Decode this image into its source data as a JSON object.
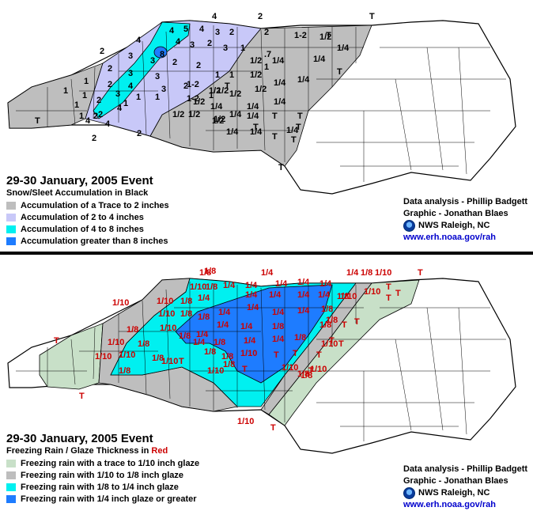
{
  "top": {
    "title": "29-30 January, 2005 Event",
    "subtitle": "Snow/Sleet Accumulation in Black",
    "legend": [
      {
        "label": "Accumulation of a Trace to 2 inches",
        "color": "#bebebe"
      },
      {
        "label": "Accumulation of 2 to 4 inches",
        "color": "#c8c8f8"
      },
      {
        "label": "Accumulation of 4 to 8 inches",
        "color": "#00f0f0"
      },
      {
        "label": "Accumulation greater than 8 inches",
        "color": "#1e7cff"
      }
    ],
    "credits": {
      "analysis": "Data analysis - Phillip Badgett",
      "graphic": "Graphic - Jonathan Blaes",
      "office": "NWS Raleigh, NC",
      "url": "www.erh.noaa.gov/rah"
    },
    "contour_labels": [
      "4",
      "2",
      "T",
      "4",
      "2",
      "2",
      "4",
      "T",
      "2",
      "2",
      "T"
    ],
    "county_values": [
      "4",
      "5",
      "4",
      "3",
      "2",
      "2",
      "1-2",
      "1/2",
      "1/4",
      "4",
      "8",
      "3",
      "2",
      "3",
      "1",
      "1/2",
      "1/4",
      "3",
      "3",
      "2",
      "2",
      ".7",
      "1",
      "1/2",
      "1/4",
      "2",
      "3",
      "3",
      "1",
      "1",
      "1/2",
      "1/4",
      "T",
      "1",
      "2",
      "4",
      "3",
      "2",
      "1",
      "1/2",
      "1/4",
      "1/4",
      "1",
      "1",
      "1/2",
      "3",
      "1-2",
      "1/2",
      "1/2",
      "1/4",
      "1/2",
      "T",
      "2",
      "4",
      "1",
      "1",
      "1/2",
      "1/4",
      "T",
      "T",
      "1",
      "2",
      "1",
      "1-2",
      "1/4",
      "T",
      "1/4",
      "1",
      "4",
      "1/2",
      "1/2",
      "1/4",
      "T",
      "T",
      "1/4",
      "1/4",
      "T",
      "T"
    ]
  },
  "bottom": {
    "title": "29-30 January, 2005 Event",
    "subtitle_prefix": "Freezing Rain / Glaze Thickness in ",
    "subtitle_red": "Red",
    "legend": [
      {
        "label": "Freezing rain with a trace to 1/10 inch glaze",
        "color": "#c8e0c8"
      },
      {
        "label": "Freezing rain with 1/10 to 1/8 inch glaze",
        "color": "#bebebe"
      },
      {
        "label": "Freezing rain with 1/8 to 1/4 inch glaze",
        "color": "#00f0f0"
      },
      {
        "label": "Freezing rain with 1/4 inch glaze or greater",
        "color": "#1e7cff"
      }
    ],
    "credits": {
      "analysis": "Data analysis - Phillip Badgett",
      "graphic": "Graphic - Jonathan Blaes",
      "office": "NWS Raleigh, NC",
      "url": "www.erh.noaa.gov/rah"
    },
    "contour_labels": [
      "1/8",
      "1/4",
      "1/4",
      "1/8",
      "1/10",
      "T",
      "1/10",
      "T",
      "T",
      "1/10",
      "T"
    ],
    "county_values": [
      "1/10",
      "1/8",
      "1/8",
      "1/4",
      "1/4",
      "1/4",
      "1/4",
      "1/4",
      "1/10",
      "T",
      "1/10",
      "1/8",
      "1/4",
      "1/4",
      "1/4",
      "1/4",
      "1/4",
      "1/8",
      "1/10",
      "T",
      "T",
      "1/10",
      "1/8",
      "1/8",
      "1/4",
      "1/4",
      "1/4",
      "1/4",
      "1/8",
      "1/8",
      "T",
      "T",
      "1/10",
      "1/8",
      "1/4",
      "1/4",
      "1/4",
      "1/8",
      "1/8",
      "T",
      "T",
      "1/10",
      "1/8",
      "1/4",
      "1/8",
      "1/4",
      "1/4",
      "1/8",
      "1/10",
      "T",
      "1/10",
      "1/8",
      "1/8",
      "1/8",
      "1/8",
      "1/10",
      "T",
      "T",
      "1/10",
      "1/8",
      "1/10",
      "1/8",
      "1/10",
      "T",
      "1/10",
      "1/8",
      "T",
      "1/10",
      "1/8",
      "T"
    ]
  }
}
